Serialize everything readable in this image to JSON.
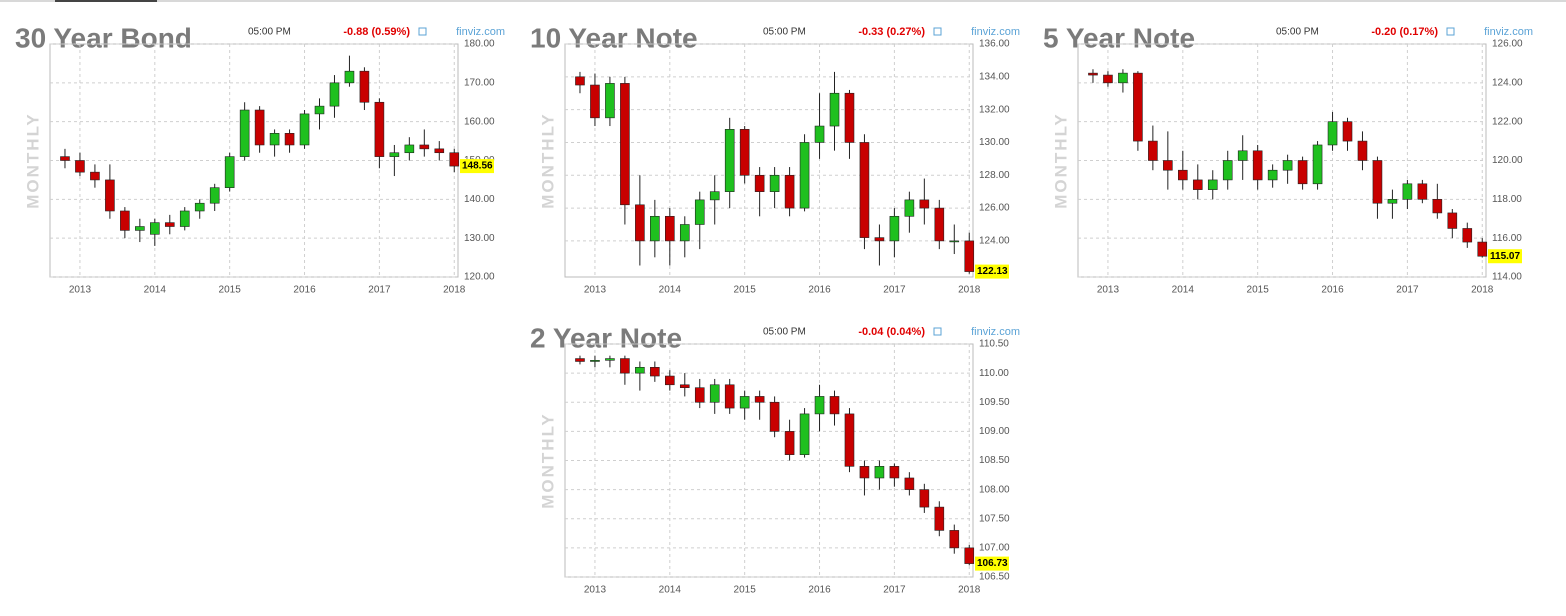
{
  "chart_data": [
    {
      "type": "candlestick",
      "title": "30 Year Bond",
      "time": "05:00 PM",
      "change": "-0.88 (0.59%)",
      "source": "finviz.com",
      "timeframe": "MONTHLY",
      "up_color": "#1fc01f",
      "down_color": "#c80000",
      "tag_color": "#ffff00",
      "xlim": [
        2012.6,
        2018.05
      ],
      "xticks": [
        2013,
        2014,
        2015,
        2016,
        2017,
        2018
      ],
      "ylim": [
        120,
        180
      ],
      "yticks": [
        {
          "value": 120,
          "label": "120.00"
        },
        {
          "value": 130,
          "label": "130.00"
        },
        {
          "value": 140,
          "label": "140.00"
        },
        {
          "value": 150,
          "label": "150.00"
        },
        {
          "value": 160,
          "label": "160.00"
        },
        {
          "value": 170,
          "label": "170.00"
        },
        {
          "value": 180,
          "label": "180.00"
        }
      ],
      "x": [
        2012.8,
        2013.0,
        2013.2,
        2013.4,
        2013.6,
        2013.8,
        2014.0,
        2014.2,
        2014.4,
        2014.6,
        2014.8,
        2015.0,
        2015.2,
        2015.4,
        2015.6,
        2015.8,
        2016.0,
        2016.2,
        2016.4,
        2016.6,
        2016.8,
        2017.0,
        2017.2,
        2017.4,
        2017.6,
        2017.8,
        2018.0
      ],
      "open": [
        151,
        150,
        147,
        145,
        137,
        132,
        131,
        134,
        133,
        137,
        139,
        143,
        151,
        163,
        154,
        157,
        154,
        162,
        164,
        170,
        173,
        165,
        151,
        152,
        154,
        153,
        152
      ],
      "high": [
        153,
        152,
        149,
        149,
        138,
        135,
        135,
        136,
        138,
        140,
        144,
        152,
        165,
        164,
        158,
        158,
        163,
        166,
        172,
        177,
        174,
        166,
        154,
        156,
        158,
        155,
        153
      ],
      "low": [
        148,
        146,
        143,
        135,
        130,
        129,
        128,
        131,
        132,
        135,
        137,
        142,
        150,
        152,
        151,
        152,
        153,
        158,
        161,
        169,
        163,
        148,
        146,
        150,
        151,
        150,
        147
      ],
      "close": [
        150,
        147,
        145,
        137,
        132,
        133,
        134,
        133,
        137,
        139,
        143,
        151,
        163,
        154,
        157,
        154,
        162,
        164,
        170,
        173,
        165,
        151,
        152,
        154,
        153,
        152,
        148.56
      ]
    },
    {
      "type": "candlestick",
      "title": "10 Year Note",
      "time": "05:00 PM",
      "change": "-0.33 (0.27%)",
      "source": "finviz.com",
      "timeframe": "MONTHLY",
      "up_color": "#1fc01f",
      "down_color": "#c80000",
      "tag_color": "#ffff00",
      "xlim": [
        2012.6,
        2018.05
      ],
      "xticks": [
        2013,
        2014,
        2015,
        2016,
        2017,
        2018
      ],
      "ylim": [
        121.8,
        136
      ],
      "yticks": [
        {
          "value": 124,
          "label": "124.00"
        },
        {
          "value": 126,
          "label": "126.00"
        },
        {
          "value": 128,
          "label": "128.00"
        },
        {
          "value": 130,
          "label": "130.00"
        },
        {
          "value": 132,
          "label": "132.00"
        },
        {
          "value": 134,
          "label": "134.00"
        },
        {
          "value": 136,
          "label": "136.00"
        }
      ],
      "x": [
        2012.8,
        2013.0,
        2013.2,
        2013.4,
        2013.6,
        2013.8,
        2014.0,
        2014.2,
        2014.4,
        2014.6,
        2014.8,
        2015.0,
        2015.2,
        2015.4,
        2015.6,
        2015.8,
        2016.0,
        2016.2,
        2016.4,
        2016.6,
        2016.8,
        2017.0,
        2017.2,
        2017.4,
        2017.6,
        2017.8,
        2018.0
      ],
      "open": [
        134,
        133.5,
        131.5,
        133.6,
        126.2,
        124,
        125.5,
        124,
        125,
        126.5,
        127,
        130.8,
        128,
        127,
        128,
        126,
        130,
        131,
        133,
        130,
        124.2,
        124,
        125.5,
        126.5,
        126,
        124,
        124
      ],
      "high": [
        134.3,
        134.2,
        134,
        134,
        128,
        126.5,
        126,
        125.5,
        127,
        128,
        131.5,
        131,
        128.5,
        128.5,
        128.5,
        130.5,
        133,
        134.3,
        133.2,
        130.5,
        125,
        126,
        127,
        127.8,
        126.5,
        125,
        124.5
      ],
      "low": [
        133,
        131,
        131,
        125,
        122.5,
        123,
        122.5,
        123,
        123.5,
        125,
        126,
        127.5,
        125.5,
        126,
        125.5,
        125.8,
        129,
        129.5,
        129,
        123.5,
        122.5,
        123,
        124.5,
        125,
        123.5,
        123.2,
        122
      ],
      "close": [
        133.5,
        131.5,
        133.6,
        126.2,
        124,
        125.5,
        124,
        125,
        126.5,
        127,
        130.8,
        128,
        127,
        128,
        126,
        130,
        131,
        133,
        130,
        124.2,
        124,
        125.5,
        126.5,
        126,
        124,
        124,
        122.13
      ]
    },
    {
      "type": "candlestick",
      "title": "5 Year Note",
      "time": "05:00 PM",
      "change": "-0.20 (0.17%)",
      "source": "finviz.com",
      "timeframe": "MONTHLY",
      "up_color": "#1fc01f",
      "down_color": "#c80000",
      "tag_color": "#ffff00",
      "xlim": [
        2012.6,
        2018.05
      ],
      "xticks": [
        2013,
        2014,
        2015,
        2016,
        2017,
        2018
      ],
      "ylim": [
        114,
        126
      ],
      "yticks": [
        {
          "value": 114,
          "label": "114.00"
        },
        {
          "value": 116,
          "label": "116.00"
        },
        {
          "value": 118,
          "label": "118.00"
        },
        {
          "value": 120,
          "label": "120.00"
        },
        {
          "value": 122,
          "label": "122.00"
        },
        {
          "value": 124,
          "label": "124.00"
        },
        {
          "value": 126,
          "label": "126.00"
        }
      ],
      "x": [
        2012.8,
        2013.0,
        2013.2,
        2013.4,
        2013.6,
        2013.8,
        2014.0,
        2014.2,
        2014.4,
        2014.6,
        2014.8,
        2015.0,
        2015.2,
        2015.4,
        2015.6,
        2015.8,
        2016.0,
        2016.2,
        2016.4,
        2016.6,
        2016.8,
        2017.0,
        2017.2,
        2017.4,
        2017.6,
        2017.8,
        2018.0
      ],
      "open": [
        124.5,
        124.4,
        124,
        124.5,
        121,
        120,
        119.5,
        119,
        118.5,
        119,
        120,
        120.5,
        119,
        119.5,
        120,
        118.8,
        120.8,
        122,
        121,
        120,
        117.8,
        118,
        118.8,
        118,
        117.3,
        116.5,
        115.8
      ],
      "high": [
        124.7,
        124.6,
        124.7,
        124.6,
        121.8,
        121.5,
        120.5,
        119.8,
        119.5,
        120.5,
        121.3,
        120.8,
        119.8,
        120.3,
        120.2,
        121,
        122.5,
        122.2,
        121.5,
        120.2,
        118.5,
        119,
        119,
        118.8,
        117.5,
        116.8,
        116
      ],
      "low": [
        124,
        123.8,
        123.5,
        120.5,
        119.5,
        118.5,
        118.5,
        118,
        118,
        118.5,
        119,
        118.5,
        118.6,
        118.8,
        118.5,
        118.5,
        120.5,
        120.5,
        119.5,
        117,
        117,
        117.5,
        117.8,
        117,
        116,
        115.5,
        115
      ],
      "close": [
        124.4,
        124,
        124.5,
        121,
        120,
        119.5,
        119,
        118.5,
        119,
        120,
        120.5,
        119,
        119.5,
        120,
        118.8,
        120.8,
        122,
        121,
        120,
        117.8,
        118,
        118.8,
        118,
        117.3,
        116.5,
        115.8,
        115.07
      ]
    },
    {
      "type": "candlestick",
      "title": "2 Year Note",
      "time": "05:00 PM",
      "change": "-0.04 (0.04%)",
      "source": "finviz.com",
      "timeframe": "MONTHLY",
      "up_color": "#1fc01f",
      "down_color": "#c80000",
      "tag_color": "#ffff00",
      "xlim": [
        2012.6,
        2018.05
      ],
      "xticks": [
        2013,
        2014,
        2015,
        2016,
        2017,
        2018
      ],
      "ylim": [
        106.5,
        110.5
      ],
      "yticks": [
        {
          "value": 106.5,
          "label": "106.50"
        },
        {
          "value": 107,
          "label": "107.00"
        },
        {
          "value": 107.5,
          "label": "107.50"
        },
        {
          "value": 108,
          "label": "108.00"
        },
        {
          "value": 108.5,
          "label": "108.50"
        },
        {
          "value": 109,
          "label": "109.00"
        },
        {
          "value": 109.5,
          "label": "109.50"
        },
        {
          "value": 110,
          "label": "110.00"
        },
        {
          "value": 110.5,
          "label": "110.50"
        }
      ],
      "x": [
        2012.8,
        2013.0,
        2013.2,
        2013.4,
        2013.6,
        2013.8,
        2014.0,
        2014.2,
        2014.4,
        2014.6,
        2014.8,
        2015.0,
        2015.2,
        2015.4,
        2015.6,
        2015.8,
        2016.0,
        2016.2,
        2016.4,
        2016.6,
        2016.8,
        2017.0,
        2017.2,
        2017.4,
        2017.6,
        2017.8,
        2018.0
      ],
      "open": [
        110.25,
        110.2,
        110.22,
        110.25,
        110,
        110.1,
        109.95,
        109.8,
        109.75,
        109.5,
        109.8,
        109.4,
        109.6,
        109.5,
        109,
        108.6,
        109.3,
        109.6,
        109.3,
        108.4,
        108.2,
        108.4,
        108.2,
        108,
        107.7,
        107.3,
        107
      ],
      "high": [
        110.3,
        110.3,
        110.3,
        110.3,
        110.2,
        110.2,
        110.05,
        110,
        109.9,
        109.9,
        109.9,
        109.7,
        109.7,
        109.6,
        109.2,
        109.4,
        109.8,
        109.7,
        109.4,
        108.5,
        108.5,
        108.45,
        108.3,
        108.1,
        107.8,
        107.4,
        107.05
      ],
      "low": [
        110.15,
        110.1,
        110.1,
        109.8,
        109.7,
        109.85,
        109.7,
        109.6,
        109.4,
        109.3,
        109.3,
        109.2,
        109.2,
        108.9,
        108.5,
        108.55,
        109,
        109.1,
        108.3,
        107.9,
        108,
        108.05,
        107.9,
        107.6,
        107.2,
        106.9,
        106.7
      ],
      "close": [
        110.2,
        110.22,
        110.25,
        110,
        110.1,
        109.95,
        109.8,
        109.75,
        109.5,
        109.8,
        109.4,
        109.6,
        109.5,
        109,
        108.6,
        109.3,
        109.6,
        109.3,
        108.4,
        108.2,
        108.4,
        108.2,
        108,
        107.7,
        107.3,
        107,
        106.73
      ]
    }
  ]
}
